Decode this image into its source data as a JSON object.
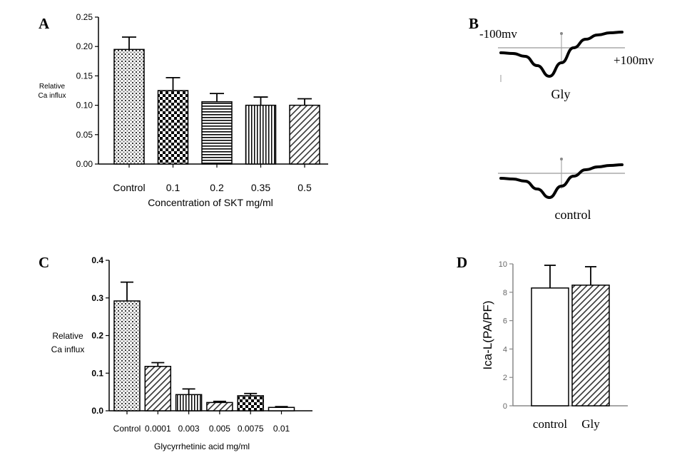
{
  "panel_labels": {
    "a": "A",
    "b": "B",
    "c": "C",
    "d": "D"
  },
  "chart_data": [
    {
      "panel": "A",
      "type": "bar",
      "title": "",
      "ylabel": "Relative Ca influx",
      "ylabel_lines": [
        "Relative",
        "Ca influx"
      ],
      "xlabel": "Concentration of SKT mg/ml",
      "categories": [
        "Control",
        "0.1",
        "0.2",
        "0.35",
        "0.5"
      ],
      "values": [
        0.195,
        0.125,
        0.106,
        0.1,
        0.1
      ],
      "errors": [
        0.021,
        0.022,
        0.014,
        0.014,
        0.011
      ],
      "patterns": [
        "grid",
        "checker",
        "hlines",
        "vlines",
        "diag"
      ],
      "yticks": [
        "0.00",
        "0.05",
        "0.10",
        "0.15",
        "0.20",
        "0.25"
      ],
      "ylim": [
        0,
        0.25
      ]
    },
    {
      "panel": "B",
      "type": "line",
      "title": "",
      "voltage_left": "-100mv",
      "voltage_right": "+100mv",
      "traces": [
        {
          "name": "Gly",
          "x": [
            -100,
            -80,
            -60,
            -40,
            -20,
            0,
            20,
            40,
            60,
            80,
            100
          ],
          "y": [
            -0.35,
            -0.4,
            -0.6,
            -1.25,
            -2.0,
            -1.05,
            0.0,
            0.6,
            0.9,
            1.05,
            1.1
          ]
        },
        {
          "name": "control",
          "x": [
            -100,
            -80,
            -60,
            -40,
            -20,
            0,
            20,
            40,
            60,
            80,
            100
          ],
          "y": [
            -0.35,
            -0.4,
            -0.55,
            -1.1,
            -1.7,
            -0.9,
            -0.2,
            0.25,
            0.45,
            0.55,
            0.6
          ]
        }
      ]
    },
    {
      "panel": "C",
      "type": "bar",
      "title": "",
      "ylabel": "Relative Ca influx",
      "ylabel_lines": [
        "Relative",
        "Ca influx"
      ],
      "xlabel": "Glycyrrhetinic acid  mg/ml",
      "categories": [
        "Control",
        "0.0001",
        "0.003",
        "0.005",
        "0.0075",
        "0.01"
      ],
      "values": [
        0.292,
        0.118,
        0.043,
        0.022,
        0.04,
        0.009
      ],
      "errors": [
        0.05,
        0.01,
        0.015,
        0.003,
        0.006,
        0.002
      ],
      "patterns": [
        "grid",
        "diag",
        "vlines",
        "diag",
        "checker",
        "none"
      ],
      "yticks": [
        "0.0",
        "0.1",
        "0.2",
        "0.3",
        "0.4"
      ],
      "ylim": [
        0,
        0.4
      ]
    },
    {
      "panel": "D",
      "type": "bar",
      "title": "",
      "ylabel": "Ica-L(PA/PF)",
      "xlabel": "",
      "categories": [
        "control",
        "Gly"
      ],
      "values": [
        8.3,
        8.5
      ],
      "errors": [
        1.6,
        1.3
      ],
      "patterns": [
        "none",
        "diag"
      ],
      "yticks": [
        "0",
        "2",
        "4",
        "6",
        "8",
        "10"
      ],
      "ylim": [
        0,
        10
      ]
    }
  ]
}
